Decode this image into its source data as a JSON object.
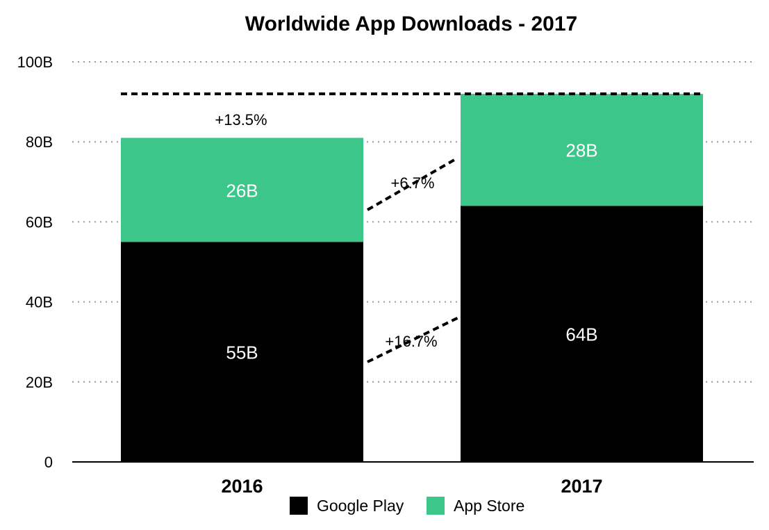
{
  "chart_data": {
    "type": "bar",
    "stacked": true,
    "title": "Worldwide App Downloads - 2017",
    "xlabel": "",
    "ylabel": "",
    "categories": [
      "2016",
      "2017"
    ],
    "series": [
      {
        "name": "Google Play",
        "values": [
          55,
          64
        ],
        "labels": [
          "55B",
          "64B"
        ],
        "color": "#000000"
      },
      {
        "name": "App Store",
        "values": [
          26,
          28
        ],
        "labels": [
          "26B",
          "28B"
        ],
        "color": "#3cc68a"
      }
    ],
    "ylim": [
      0,
      100
    ],
    "yticks": [
      0,
      20,
      40,
      60,
      80,
      100
    ],
    "ytick_labels": [
      "0",
      "20B",
      "40B",
      "60B",
      "80B",
      "100B"
    ],
    "grid": "horizontal-dotted",
    "legend_position": "bottom-center",
    "total_reference_line": 92,
    "annotations": {
      "total_growth": "+13.5%",
      "app_store_growth": "+6.7%",
      "google_play_growth": "+16.7%"
    }
  }
}
